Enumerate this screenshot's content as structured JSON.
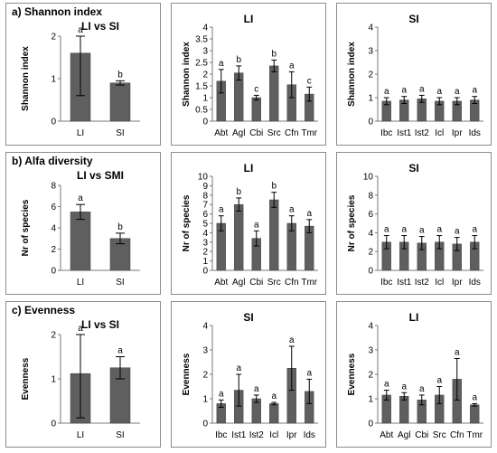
{
  "sections": [
    {
      "title": "a) Shannon index",
      "charts": [
        {
          "type": "bar",
          "title": "LI vs SI",
          "ylabel": "Shannon index",
          "ylim": [
            0,
            2
          ],
          "yticks": [
            0,
            1,
            2
          ],
          "categories": [
            "LI",
            "SI"
          ],
          "values": [
            1.6,
            0.9
          ],
          "errors": [
            1.0,
            0.05
          ],
          "letters": [
            "a",
            "b"
          ]
        },
        {
          "type": "bar",
          "title": "LI",
          "ylabel": "Shannon index",
          "ylim": [
            0,
            4
          ],
          "yticks": [
            0,
            0.5,
            1,
            1.5,
            2,
            2.5,
            3,
            3.5,
            4
          ],
          "categories": [
            "Abt",
            "Agl",
            "Cbi",
            "Src",
            "Cfn",
            "Tmr"
          ],
          "values": [
            1.7,
            2.05,
            1.0,
            2.35,
            1.55,
            1.15
          ],
          "errors": [
            0.5,
            0.3,
            0.1,
            0.25,
            0.55,
            0.3
          ],
          "letters": [
            "a",
            "b",
            "c",
            "b",
            "a",
            "c"
          ]
        },
        {
          "type": "bar",
          "title": "SI",
          "ylabel": "Shannon index",
          "ylim": [
            0,
            4
          ],
          "yticks": [
            0,
            1,
            2,
            3,
            4
          ],
          "categories": [
            "Ibc",
            "Ist1",
            "Ist2",
            "Icl",
            "Ipr",
            "Ids"
          ],
          "values": [
            0.85,
            0.9,
            0.95,
            0.85,
            0.85,
            0.9
          ],
          "errors": [
            0.15,
            0.15,
            0.15,
            0.15,
            0.15,
            0.15
          ],
          "letters": [
            "a",
            "a",
            "a",
            "a",
            "a",
            "a"
          ]
        }
      ]
    },
    {
      "title": "b) Alfa diversity",
      "charts": [
        {
          "type": "bar",
          "title": "LI vs SMI",
          "ylabel": "Nr of species",
          "ylim": [
            0,
            8
          ],
          "yticks": [
            0,
            2,
            4,
            6,
            8
          ],
          "categories": [
            "LI",
            "SI"
          ],
          "values": [
            5.5,
            3.0
          ],
          "errors": [
            0.7,
            0.5
          ],
          "letters": [
            "a",
            "b"
          ]
        },
        {
          "type": "bar",
          "title": "LI",
          "ylabel": "Nr of species",
          "ylim": [
            0,
            10
          ],
          "yticks": [
            0,
            1,
            2,
            3,
            4,
            5,
            6,
            7,
            8,
            9,
            10
          ],
          "categories": [
            "Abt",
            "Agl",
            "Cbi",
            "Src",
            "Cfn",
            "Tmr"
          ],
          "values": [
            5.0,
            7.0,
            3.4,
            7.5,
            5.0,
            4.7
          ],
          "errors": [
            0.8,
            0.7,
            0.8,
            0.8,
            0.8,
            0.7
          ],
          "letters": [
            "a",
            "b",
            "a",
            "b",
            "a",
            "a"
          ]
        },
        {
          "type": "bar",
          "title": "SI",
          "ylabel": "Nr of species",
          "ylim": [
            0,
            10
          ],
          "yticks": [
            0,
            2,
            4,
            6,
            8,
            10
          ],
          "categories": [
            "Ibc",
            "Ist1",
            "Ist2",
            "Icl",
            "Ipr",
            "Ids"
          ],
          "values": [
            3.0,
            3.0,
            2.9,
            3.0,
            2.8,
            3.0
          ],
          "errors": [
            0.7,
            0.7,
            0.7,
            0.7,
            0.7,
            0.7
          ],
          "letters": [
            "a",
            "a",
            "a",
            "a",
            "a",
            "a"
          ]
        }
      ]
    },
    {
      "title": "c) Evenness",
      "charts": [
        {
          "type": "bar",
          "title": "LI vs SI",
          "ylabel": "Evenness",
          "ylim": [
            0,
            2
          ],
          "yticks": [
            0,
            1,
            2
          ],
          "categories": [
            "LI",
            "SI"
          ],
          "values": [
            1.12,
            1.25
          ],
          "errors": [
            1.0,
            0.25
          ],
          "letters": [
            "a",
            "a"
          ]
        },
        {
          "type": "bar",
          "title": "SI",
          "ylabel": "Evenness",
          "ylim": [
            0,
            4
          ],
          "yticks": [
            0,
            1,
            2,
            3,
            4
          ],
          "categories": [
            "Ibc",
            "Ist1",
            "Ist2",
            "Icl",
            "Ipr",
            "Ids"
          ],
          "values": [
            0.8,
            1.35,
            1.0,
            0.8,
            2.25,
            1.3
          ],
          "errors": [
            0.15,
            0.65,
            0.15,
            0.05,
            0.9,
            0.5
          ],
          "letters": [
            "a",
            "a",
            "a",
            "a",
            "a",
            "a"
          ]
        },
        {
          "type": "bar",
          "title": "LI",
          "ylabel": "Evenness",
          "ylim": [
            0,
            4
          ],
          "yticks": [
            0,
            1,
            2,
            3,
            4
          ],
          "categories": [
            "Abt",
            "Agl",
            "Cbi",
            "Src",
            "Cfn",
            "Tmr"
          ],
          "values": [
            1.15,
            1.1,
            0.95,
            1.15,
            1.8,
            0.75
          ],
          "errors": [
            0.2,
            0.15,
            0.2,
            0.35,
            0.85,
            0.05
          ],
          "letters": [
            "a",
            "a",
            "a",
            "a",
            "a",
            "a"
          ]
        }
      ]
    }
  ],
  "colors": {
    "bar": "#5f5f5f",
    "bar_edge": "#3a3a3a",
    "axis": "#7a7a7a",
    "error": "#000000",
    "border": "#8c8c8c"
  }
}
